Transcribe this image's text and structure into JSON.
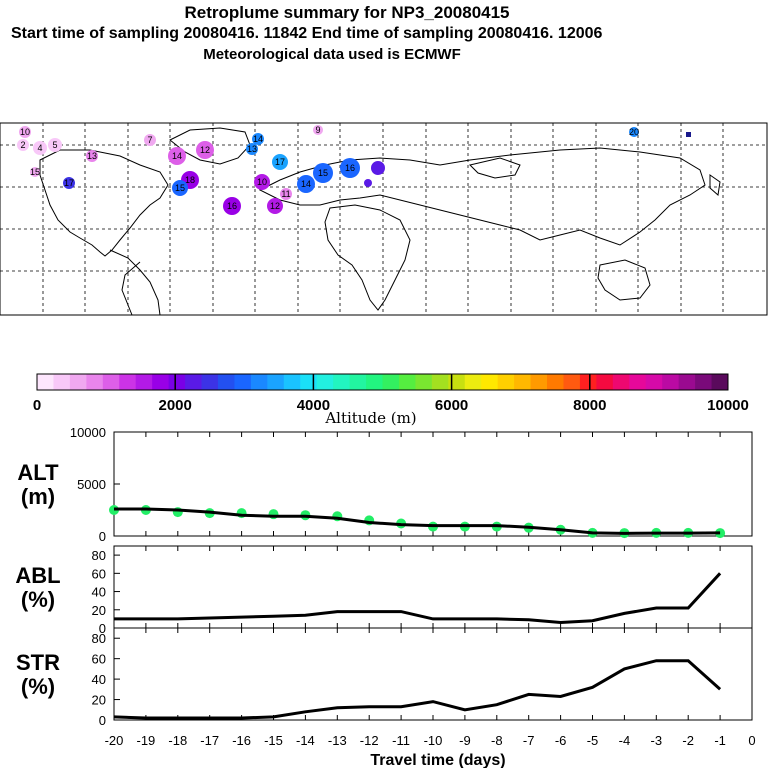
{
  "header": {
    "title": "Retroplume summary for NP3_20080415",
    "sampling_line": "Start time of sampling 20080416. 11842     End time of sampling 20080416. 12006",
    "met_line": "Meteorological data used is ECMWF"
  },
  "colorbar": {
    "colors": [
      "#fde6fd",
      "#f8c8f8",
      "#f0a8f0",
      "#e985ec",
      "#dd5fe8",
      "#cc33e6",
      "#b31ae6",
      "#9900e6",
      "#7a00e6",
      "#5a1ae6",
      "#3c33e6",
      "#2350f0",
      "#1a66ff",
      "#1a88ff",
      "#1aa3ff",
      "#1ac3ff",
      "#1ae0f8",
      "#22f0e0",
      "#22f5c0",
      "#22f5a0",
      "#22f580",
      "#33f060",
      "#55ee40",
      "#7ae630",
      "#a3e020",
      "#c8e010",
      "#ecec10",
      "#ffe800",
      "#ffd000",
      "#ffb800",
      "#ff9a00",
      "#ff7a00",
      "#ff5a10",
      "#ff2020",
      "#f50a40",
      "#ee0870",
      "#e6089a",
      "#d60aa8",
      "#bb0aa3",
      "#9a0a90",
      "#7a0a7a",
      "#5a0a5c"
    ],
    "tick_labels": [
      "0",
      "2000",
      "4000",
      "6000",
      "8000",
      "10000"
    ],
    "label": "Altitude (m)"
  },
  "map": {
    "plume_points": [
      {
        "label": "10",
        "color": "#f0a8f0"
      },
      {
        "label": "2",
        "color": "#f8c8f8"
      },
      {
        "label": "4",
        "color": "#f8c8f8"
      },
      {
        "label": "5",
        "color": "#f8c8f8"
      },
      {
        "label": "13",
        "color": "#e985ec"
      },
      {
        "label": "7",
        "color": "#f0a8f0"
      },
      {
        "label": "12",
        "color": "#dd5fe8"
      },
      {
        "label": "14",
        "color": "#1a88ff"
      },
      {
        "label": "13",
        "color": "#1a88ff"
      },
      {
        "label": "9",
        "color": "#f0a8f0"
      },
      {
        "label": "20",
        "color": "#1a88ff"
      },
      {
        "label": "17",
        "color": "#1aa3ff"
      },
      {
        "label": "18",
        "color": "#9900e6"
      },
      {
        "label": "10",
        "color": "#b31ae6"
      },
      {
        "label": "14",
        "color": "#1a66ff"
      },
      {
        "label": "15",
        "color": "#1a66ff"
      },
      {
        "label": "16",
        "color": "#1a66ff"
      },
      {
        "label": "11",
        "color": "#e985ec"
      },
      {
        "label": "16",
        "color": "#9900e6"
      },
      {
        "label": "12",
        "color": "#b31ae6"
      },
      {
        "label": "15",
        "color": "#1a66ff"
      },
      {
        "label": "17",
        "color": "#3c33e6"
      },
      {
        "label": "14",
        "color": "#dd5fe8"
      },
      {
        "label": "15",
        "color": "#f0a8f0"
      }
    ]
  },
  "chart_data": [
    {
      "type": "line",
      "panel": "altitude",
      "ylabel": "ALT\n(m)",
      "ylabel_lines": [
        "ALT",
        "(m)"
      ],
      "ylim": [
        0,
        10000
      ],
      "yticks": [
        "0",
        "5000",
        "10000"
      ],
      "xlim": [
        -20,
        0
      ],
      "x": [
        -20,
        -19,
        -18,
        -17,
        -16,
        -15,
        -14,
        -13,
        -12,
        -11,
        -10,
        -9,
        -8,
        -7,
        -6,
        -5,
        -4,
        -3,
        -2,
        -1
      ],
      "values": [
        2600,
        2600,
        2500,
        2300,
        2000,
        1900,
        1900,
        1700,
        1300,
        1100,
        1000,
        1000,
        1000,
        850,
        600,
        300,
        250,
        280,
        280,
        300
      ],
      "scatter_y": [
        2500,
        2500,
        2300,
        2200,
        2200,
        2100,
        2000,
        1900,
        1500,
        1200,
        900,
        900,
        900,
        800,
        600,
        300,
        280,
        300,
        300,
        280
      ]
    },
    {
      "type": "line",
      "panel": "abl",
      "ylabel": "ABL\n(%)",
      "ylabel_lines": [
        "ABL",
        "(%)"
      ],
      "ylim": [
        0,
        90
      ],
      "yticks": [
        "0",
        "20",
        "40",
        "60",
        "80"
      ],
      "xlim": [
        -20,
        0
      ],
      "x": [
        -20,
        -19,
        -18,
        -17,
        -16,
        -15,
        -14,
        -13,
        -12,
        -11,
        -10,
        -9,
        -8,
        -7,
        -6,
        -5,
        -4,
        -3,
        -2,
        -1
      ],
      "values": [
        10,
        10,
        10,
        11,
        12,
        13,
        14,
        18,
        18,
        18,
        10,
        10,
        10,
        9,
        6,
        8,
        16,
        22,
        22,
        60
      ]
    },
    {
      "type": "line",
      "panel": "str",
      "ylabel": "STR\n(%)",
      "ylabel_lines": [
        "STR",
        "(%)"
      ],
      "ylim": [
        0,
        90
      ],
      "yticks": [
        "0",
        "20",
        "40",
        "60",
        "80"
      ],
      "xlim": [
        -20,
        0
      ],
      "x": [
        -20,
        -19,
        -18,
        -17,
        -16,
        -15,
        -14,
        -13,
        -12,
        -11,
        -10,
        -9,
        -8,
        -7,
        -6,
        -5,
        -4,
        -3,
        -2,
        -1
      ],
      "values": [
        3,
        2,
        2,
        2,
        2,
        3,
        8,
        12,
        13,
        13,
        18,
        10,
        15,
        25,
        23,
        32,
        50,
        58,
        58,
        30
      ],
      "xlabel": "Travel time (days)",
      "xticks": [
        "-20",
        "-19",
        "-18",
        "-17",
        "-16",
        "-15",
        "-14",
        "-13",
        "-12",
        "-11",
        "-10",
        "-9",
        "-8",
        "-7",
        "-6",
        "-5",
        "-4",
        "-3",
        "-2",
        "-1",
        "0"
      ]
    }
  ]
}
